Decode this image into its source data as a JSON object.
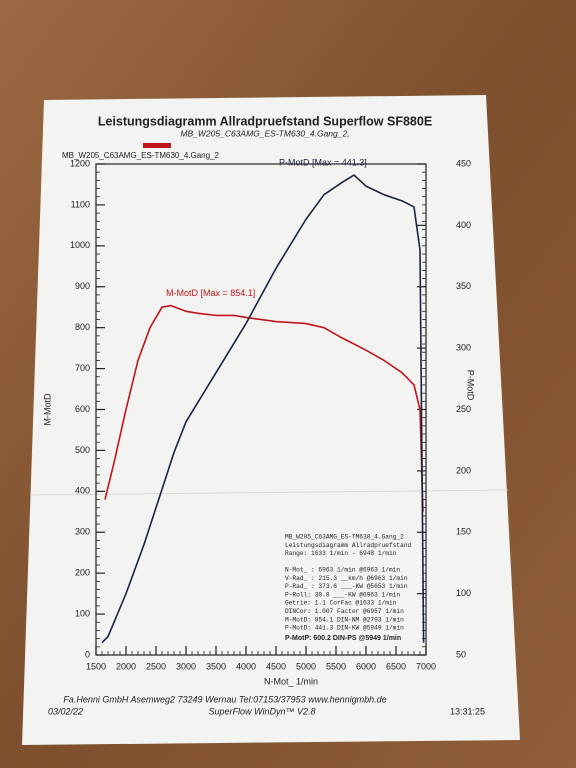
{
  "chart_data": {
    "type": "line",
    "title": "Leistungsdiagramm Allradpruefstand Superflow SF880E",
    "subtitle": "MB_W205_C63AMG_ES-TM630_4.Gang_2,",
    "legend_label": "MB_W205_C63AMG_ES-TM630_4.Gang_2",
    "xlabel": "N-Mot_ 1/min",
    "ylabel": "M-MotD",
    "y2label": "P-MotD",
    "xlim": [
      1500,
      7000
    ],
    "xticks": [
      1500,
      2000,
      2500,
      3000,
      3500,
      4000,
      4500,
      5000,
      5500,
      6000,
      6500,
      7000
    ],
    "ylim": [
      0,
      1200
    ],
    "yticks": [
      0,
      100,
      200,
      300,
      400,
      500,
      600,
      700,
      800,
      900,
      1000,
      1100,
      1200
    ],
    "y2lim": [
      50,
      450
    ],
    "y2ticks": [
      50,
      100,
      150,
      200,
      250,
      300,
      350,
      400,
      450
    ],
    "series": [
      {
        "name": "M-MotD [Max = 854.1]",
        "color": "#c0141c",
        "axis": "y",
        "x": [
          1650,
          1800,
          2000,
          2200,
          2400,
          2600,
          2750,
          3000,
          3200,
          3500,
          3800,
          4000,
          4500,
          5000,
          5300,
          5600,
          6000,
          6300,
          6600,
          6800,
          6900,
          6950
        ],
        "values": [
          380,
          470,
          600,
          720,
          800,
          850,
          854,
          840,
          835,
          830,
          830,
          825,
          815,
          810,
          800,
          775,
          745,
          720,
          690,
          660,
          600,
          350
        ]
      },
      {
        "name": "P-MotD [Max = 441.3]",
        "color": "#1a2340",
        "axis": "y2",
        "x": [
          1600,
          1700,
          2000,
          2300,
          2500,
          2800,
          3000,
          3500,
          4000,
          4500,
          5000,
          5300,
          5600,
          5800,
          6000,
          6300,
          6600,
          6800,
          6900,
          6960
        ],
        "values": [
          60,
          65,
          100,
          140,
          170,
          215,
          240,
          280,
          320,
          365,
          405,
          425,
          435,
          441,
          432,
          425,
          420,
          415,
          380,
          60
        ]
      }
    ],
    "info_lines": [
      "MB_W205_C63AMG_ES-TM630_4.Gang_2",
      "Leistungsdiagramm Allradpruefstand",
      "Range: 1633 1/min - 6948 1/min",
      "N-Mot_ :  6963 1/min  @6963 1/min",
      "V-Rad_ : 215.3 __km/h @6963 1/min",
      "P-Rad_ : 373.6 ___-KW @5653 1/min",
      "P-Roll:  30.8 ___-KW @6963 1/min",
      "Getrie:   1.1 CorFac @1633 1/min",
      "DINCor: 1.007 Factor @6957 1/min",
      "M-MotD: 854.1 DIN-NM @2793 1/min",
      "P-MotD: 441.3 DIN-KW @5949 1/min"
    ],
    "info_highlight": "P-MotP:  600.2 DIN-PS @5949 1/min",
    "footer": {
      "company": "Fa.Henni GmbH   Asemweg2   73249 Wernau   Tel:07153/37953   www.hennigmbh.de",
      "date": "03/02/22",
      "software": "SuperFlow WinDyn™ V2.8",
      "time": "13:31:25"
    }
  }
}
